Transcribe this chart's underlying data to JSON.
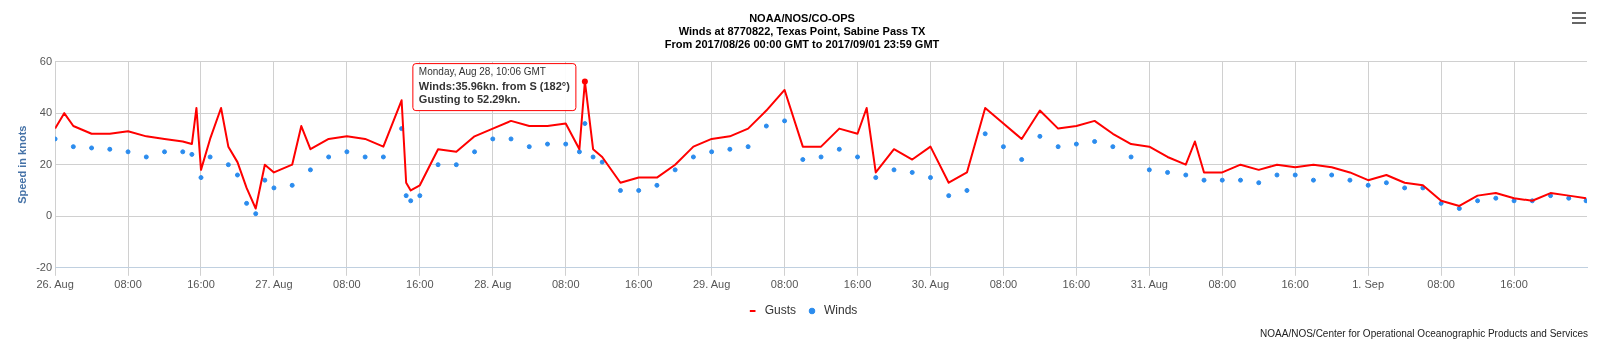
{
  "chart_data": {
    "type": "line",
    "title": "NOAA/NOS/CO-OPS",
    "subtitle": "Winds at 8770822, Texas Point, Sabine Pass TX\nFrom 2017/08/26 00:00 GMT to 2017/09/01 23:59 GMT",
    "ylabel": "Speed in knots",
    "x": [
      "2017-08-26T00:00",
      "2017-08-26T01:00",
      "2017-08-26T02:00",
      "2017-08-26T04:00",
      "2017-08-26T06:00",
      "2017-08-26T08:00",
      "2017-08-26T10:00",
      "2017-08-26T12:00",
      "2017-08-26T14:00",
      "2017-08-26T15:00",
      "2017-08-26T15:30",
      "2017-08-26T16:00",
      "2017-08-26T17:00",
      "2017-08-26T18:12",
      "2017-08-26T19:00",
      "2017-08-26T20:00",
      "2017-08-26T21:00",
      "2017-08-26T22:00",
      "2017-08-26T23:00",
      "2017-08-27T00:00",
      "2017-08-27T02:00",
      "2017-08-27T03:00",
      "2017-08-27T04:00",
      "2017-08-27T06:00",
      "2017-08-27T08:00",
      "2017-08-27T10:00",
      "2017-08-27T12:00",
      "2017-08-27T14:00",
      "2017-08-27T14:30",
      "2017-08-27T15:00",
      "2017-08-27T16:00",
      "2017-08-27T18:00",
      "2017-08-27T20:00",
      "2017-08-27T22:00",
      "2017-08-28T00:00",
      "2017-08-28T02:00",
      "2017-08-28T04:00",
      "2017-08-28T06:00",
      "2017-08-28T08:00",
      "2017-08-28T09:30",
      "2017-08-28T10:06",
      "2017-08-28T11:00",
      "2017-08-28T12:00",
      "2017-08-28T14:00",
      "2017-08-28T16:00",
      "2017-08-28T18:00",
      "2017-08-28T20:00",
      "2017-08-28T22:00",
      "2017-08-29T00:00",
      "2017-08-29T02:00",
      "2017-08-29T04:00",
      "2017-08-29T06:00",
      "2017-08-29T08:00",
      "2017-08-29T10:00",
      "2017-08-29T12:00",
      "2017-08-29T14:00",
      "2017-08-29T16:00",
      "2017-08-29T17:00",
      "2017-08-29T18:00",
      "2017-08-29T20:00",
      "2017-08-29T22:00",
      "2017-08-30T00:00",
      "2017-08-30T02:00",
      "2017-08-30T04:00",
      "2017-08-30T06:00",
      "2017-08-30T08:00",
      "2017-08-30T10:00",
      "2017-08-30T12:00",
      "2017-08-30T14:00",
      "2017-08-30T16:00",
      "2017-08-30T18:00",
      "2017-08-30T20:00",
      "2017-08-30T22:00",
      "2017-08-31T00:00",
      "2017-08-31T02:00",
      "2017-08-31T04:00",
      "2017-08-31T05:00",
      "2017-08-31T06:00",
      "2017-08-31T08:00",
      "2017-08-31T10:00",
      "2017-08-31T12:00",
      "2017-08-31T14:00",
      "2017-08-31T16:00",
      "2017-08-31T18:00",
      "2017-08-31T20:00",
      "2017-08-31T22:00",
      "2017-09-01T00:00",
      "2017-09-01T02:00",
      "2017-09-01T04:00",
      "2017-09-01T06:00",
      "2017-09-01T08:00",
      "2017-09-01T10:00",
      "2017-09-01T12:00",
      "2017-09-01T14:00",
      "2017-09-01T16:00",
      "2017-09-01T18:00",
      "2017-09-01T20:00",
      "2017-09-01T22:00",
      "2017-09-01T23:54"
    ],
    "series": [
      {
        "name": "Winds",
        "type": "scatter",
        "color": "#2b8cee",
        "values": [
          30,
          null,
          27,
          26.5,
          26,
          25,
          23,
          25,
          25,
          24,
          null,
          15,
          23,
          null,
          20,
          16,
          5,
          1,
          14,
          11,
          12,
          null,
          18,
          23,
          25,
          23,
          23,
          34,
          8,
          6,
          8,
          20,
          20,
          25,
          30,
          30,
          27,
          28,
          28,
          25,
          35.96,
          23,
          21,
          10,
          10,
          12,
          18,
          23,
          25,
          26,
          27,
          35,
          37,
          22,
          23,
          26,
          23,
          null,
          15,
          18,
          17,
          15,
          8,
          10,
          32,
          27,
          22,
          31,
          27,
          28,
          29,
          27,
          23,
          18,
          17,
          16,
          null,
          14,
          14,
          14,
          13,
          16,
          16,
          14,
          16,
          14,
          12,
          13,
          11,
          11,
          5,
          3,
          6,
          7,
          6,
          6,
          8,
          7,
          6
        ]
      },
      {
        "name": "Gusts",
        "marker": "none",
        "color": "#ff0000",
        "values": [
          34,
          40,
          35,
          32,
          32,
          33,
          31,
          30,
          29,
          28,
          42,
          18,
          30,
          42,
          27,
          21,
          11,
          3,
          20,
          17,
          20,
          35,
          26,
          30,
          31,
          30,
          27,
          45,
          13,
          10,
          12,
          26,
          25,
          31,
          34,
          37,
          35,
          35,
          36,
          26,
          52.29,
          26,
          23,
          13,
          15,
          15,
          20,
          27,
          30,
          31,
          34,
          41,
          49,
          27,
          27,
          34,
          32,
          42,
          17,
          26,
          22,
          27,
          13,
          17,
          42,
          36,
          30,
          41,
          34,
          35,
          37,
          32,
          28,
          27,
          23,
          20,
          29,
          17,
          17,
          20,
          18,
          20,
          19,
          20,
          19,
          17,
          14,
          16,
          13,
          12,
          6,
          4,
          8,
          9,
          7,
          6,
          9,
          8,
          7
        ]
      }
    ],
    "xlim": [
      "2017-08-26",
      "2017-09-02"
    ],
    "xticks": [
      {
        "value": "2017-08-26",
        "label": "26. Aug"
      },
      {
        "value": "2017-08-26T08:00",
        "label": "08:00"
      },
      {
        "value": "2017-08-26T16:00",
        "label": "16:00"
      },
      {
        "value": "2017-08-27",
        "label": "27. Aug"
      },
      {
        "value": "2017-08-27T08:00",
        "label": "08:00"
      },
      {
        "value": "2017-08-27T16:00",
        "label": "16:00"
      },
      {
        "value": "2017-08-28",
        "label": "28. Aug"
      },
      {
        "value": "2017-08-28T08:00",
        "label": "08:00"
      },
      {
        "value": "2017-08-28T16:00",
        "label": "16:00"
      },
      {
        "value": "2017-08-29",
        "label": "29. Aug"
      },
      {
        "value": "2017-08-29T08:00",
        "label": "08:00"
      },
      {
        "value": "2017-08-29T16:00",
        "label": "16:00"
      },
      {
        "value": "2017-08-30",
        "label": "30. Aug"
      },
      {
        "value": "2017-08-30T08:00",
        "label": "08:00"
      },
      {
        "value": "2017-08-30T16:00",
        "label": "16:00"
      },
      {
        "value": "2017-08-31",
        "label": "31. Aug"
      },
      {
        "value": "2017-08-31T08:00",
        "label": "08:00"
      },
      {
        "value": "2017-08-31T16:00",
        "label": "16:00"
      },
      {
        "value": "2017-09-01",
        "label": "1. Sep"
      },
      {
        "value": "2017-09-01T08:00",
        "label": "08:00"
      },
      {
        "value": "2017-09-01T16:00",
        "label": "16:00"
      }
    ],
    "ylim": [
      -20,
      60
    ],
    "yticks": [
      -20,
      0,
      20,
      40,
      60
    ],
    "grid": true,
    "legend": "bottom",
    "marker": "circle",
    "annotations": [
      {
        "text": "Monday, Aug 28, 10:06 GMT\nWinds:35.96kn. from S (182°)\nGusting to 52.29kn.",
        "x": "2017-08-28T10:06",
        "y": 52.29
      },
      "NOAA/NOS/Center for Operational Oceanographic Products and Services"
    ]
  }
}
